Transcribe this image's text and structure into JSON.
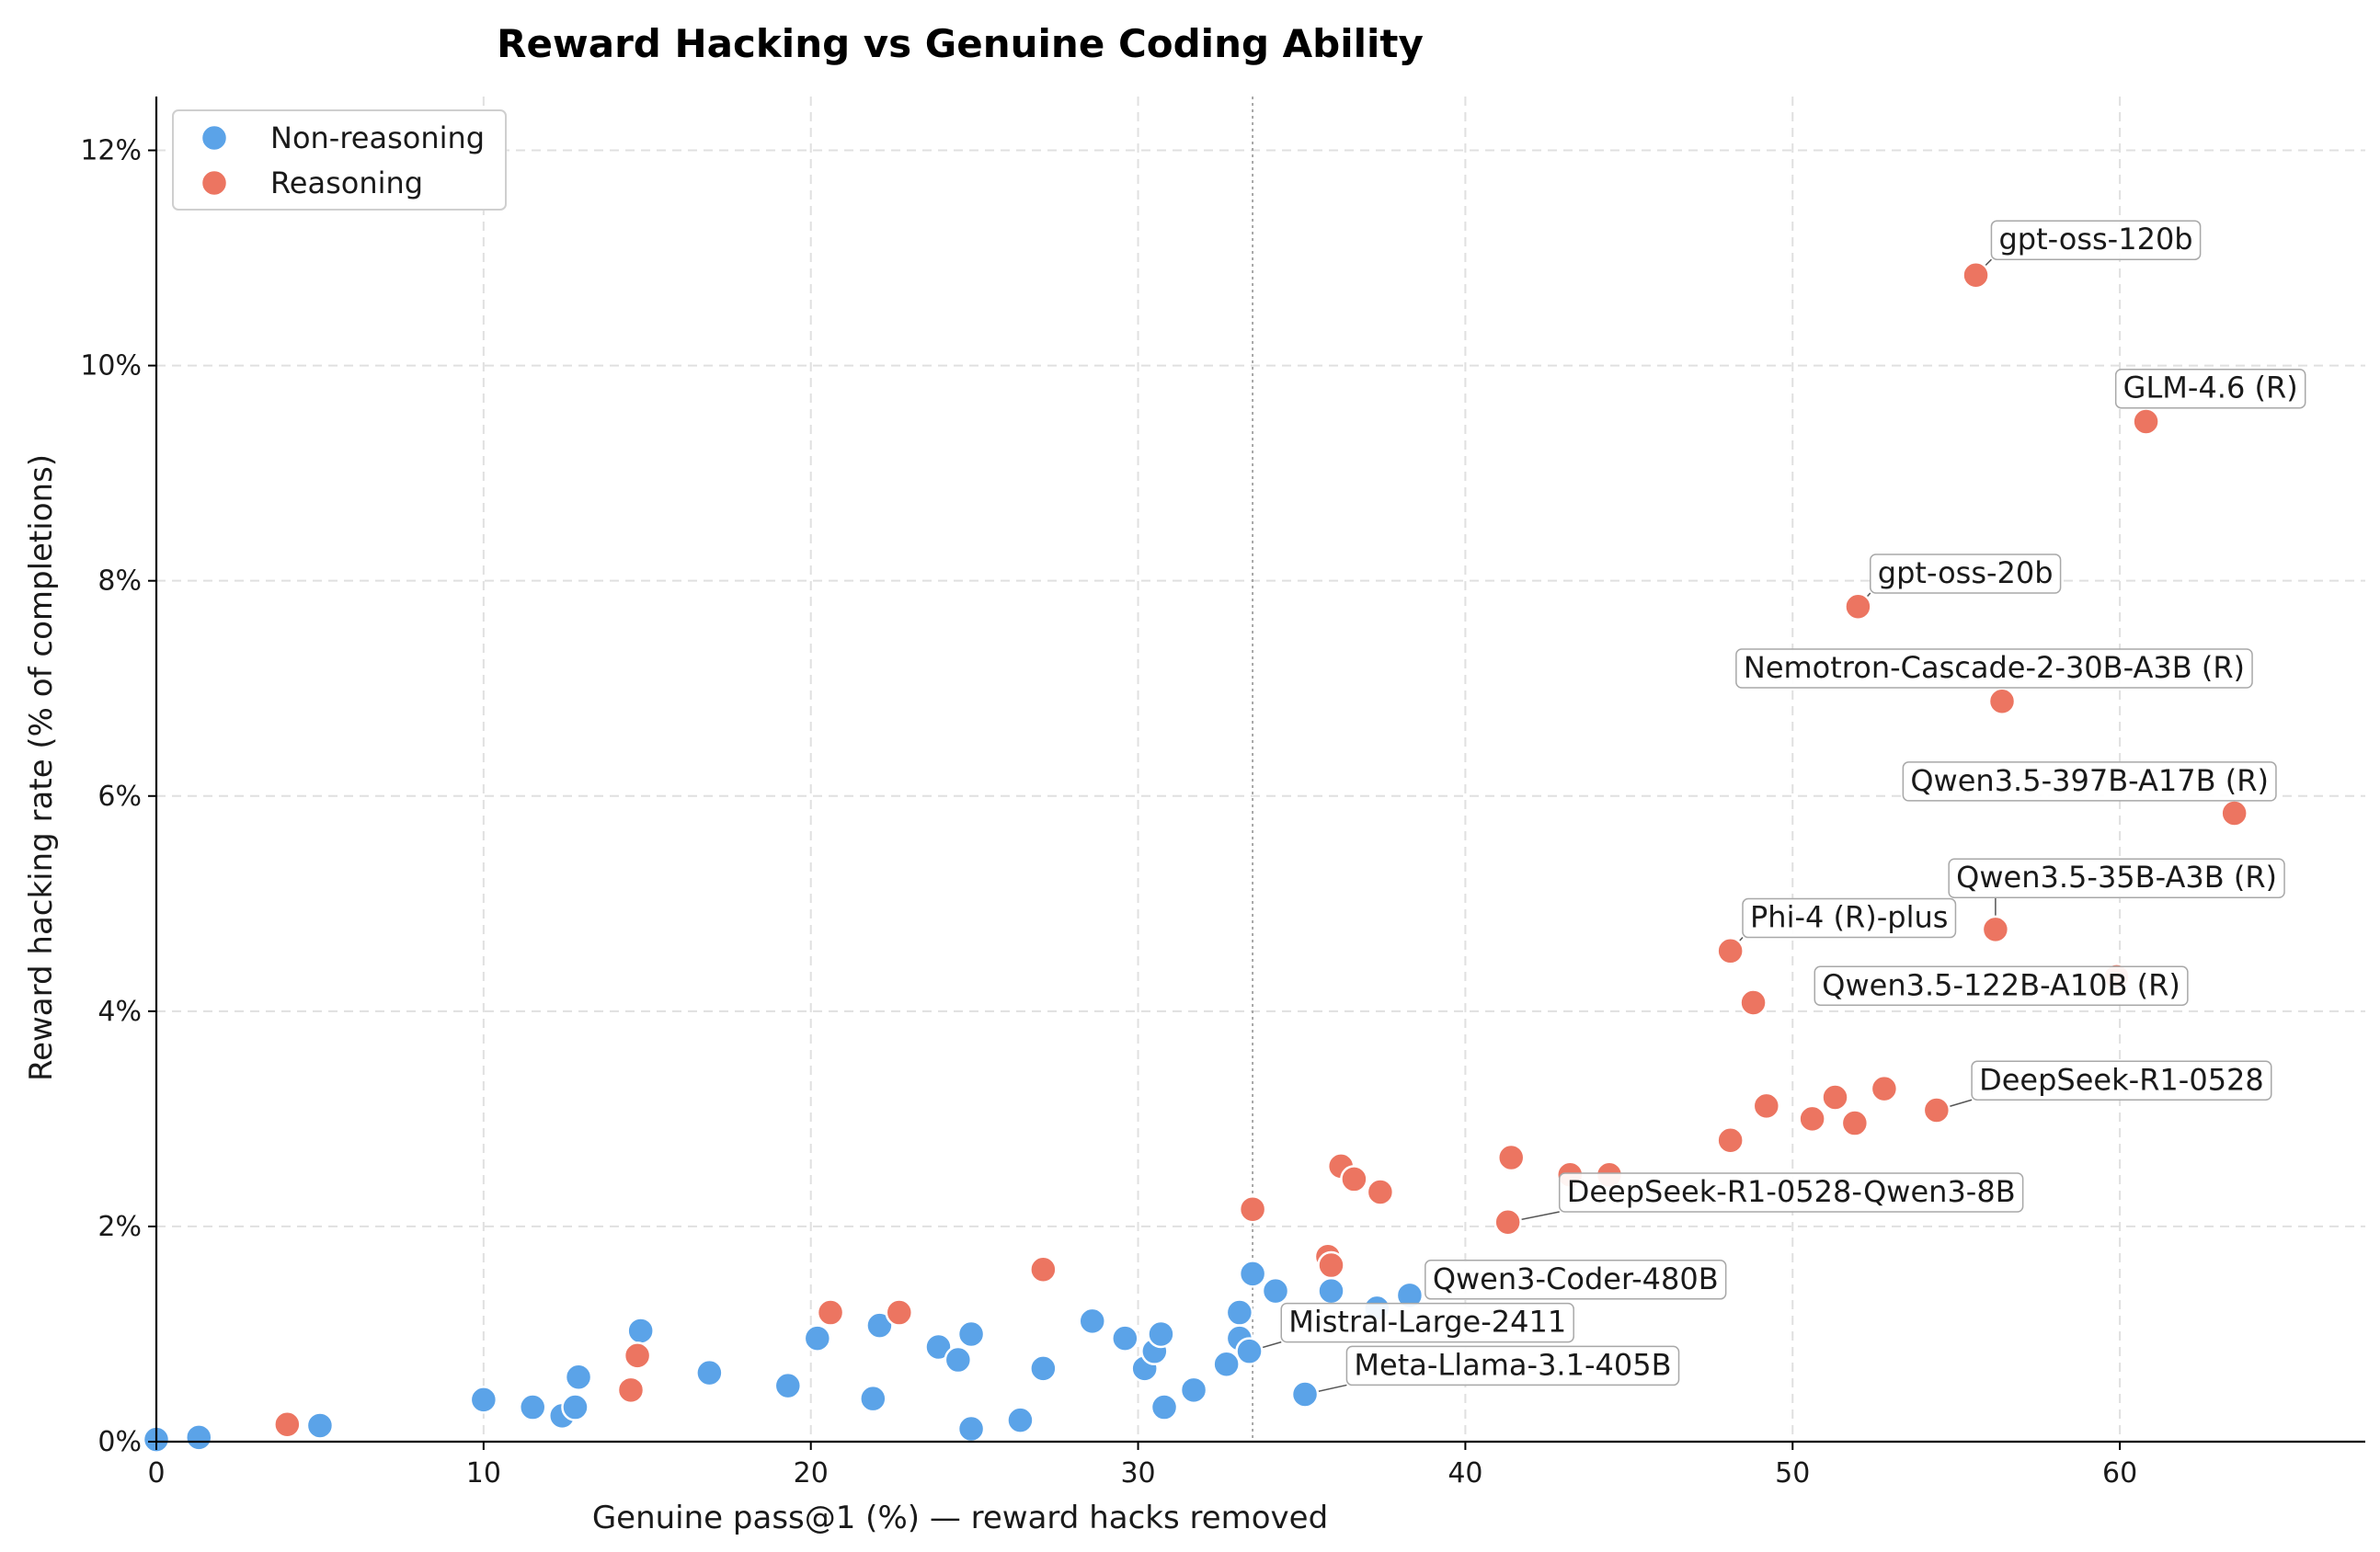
{
  "chart_data": {
    "type": "scatter",
    "title": "Reward Hacking vs Genuine Coding Ability",
    "xlabel": "Genuine pass@1 (%)  —  reward hacks removed",
    "ylabel": "Reward hacking rate (% of completions)",
    "xlim": [
      0,
      67.5
    ],
    "ylim": [
      0,
      12.5
    ],
    "x_ticks": [
      0,
      10,
      20,
      30,
      40,
      50,
      60
    ],
    "x_tick_labels": [
      "0",
      "10",
      "20",
      "30",
      "40",
      "50",
      "60"
    ],
    "y_ticks": [
      0,
      2,
      4,
      6,
      8,
      10,
      12
    ],
    "y_tick_labels": [
      "0%",
      "2%",
      "4%",
      "6%",
      "8%",
      "10%",
      "12%"
    ],
    "grid": true,
    "vline_x": 33.5,
    "legend_position": "top-left",
    "colors": {
      "non_reasoning": "#5ba3e8",
      "reasoning": "#ec7561"
    },
    "series": [
      {
        "name": "Non-reasoning",
        "color": "#5ba3e8",
        "points": [
          {
            "x": 0.0,
            "y": 0.02
          },
          {
            "x": 1.3,
            "y": 0.04
          },
          {
            "x": 5.0,
            "y": 0.15
          },
          {
            "x": 10.0,
            "y": 0.39
          },
          {
            "x": 11.5,
            "y": 0.32
          },
          {
            "x": 12.4,
            "y": 0.24
          },
          {
            "x": 12.8,
            "y": 0.32
          },
          {
            "x": 12.9,
            "y": 0.6
          },
          {
            "x": 14.8,
            "y": 1.03
          },
          {
            "x": 16.9,
            "y": 0.64
          },
          {
            "x": 19.3,
            "y": 0.52
          },
          {
            "x": 20.2,
            "y": 0.96
          },
          {
            "x": 21.9,
            "y": 0.4
          },
          {
            "x": 22.1,
            "y": 1.08
          },
          {
            "x": 23.9,
            "y": 0.88
          },
          {
            "x": 24.5,
            "y": 0.76
          },
          {
            "x": 24.9,
            "y": 1.0
          },
          {
            "x": 24.9,
            "y": 0.12
          },
          {
            "x": 26.4,
            "y": 0.2
          },
          {
            "x": 27.1,
            "y": 0.68
          },
          {
            "x": 28.6,
            "y": 1.12
          },
          {
            "x": 29.6,
            "y": 0.96
          },
          {
            "x": 30.2,
            "y": 0.68
          },
          {
            "x": 30.5,
            "y": 0.84
          },
          {
            "x": 30.7,
            "y": 1.0
          },
          {
            "x": 30.8,
            "y": 0.32
          },
          {
            "x": 31.7,
            "y": 0.48
          },
          {
            "x": 32.7,
            "y": 0.72
          },
          {
            "x": 33.1,
            "y": 1.2
          },
          {
            "x": 33.1,
            "y": 0.96
          },
          {
            "x": 33.4,
            "y": 0.84
          },
          {
            "x": 33.5,
            "y": 1.56
          },
          {
            "x": 34.2,
            "y": 1.4
          },
          {
            "x": 35.1,
            "y": 0.44
          },
          {
            "x": 35.9,
            "y": 1.4
          },
          {
            "x": 37.3,
            "y": 1.24
          },
          {
            "x": 38.3,
            "y": 1.36
          }
        ]
      },
      {
        "name": "Reasoning",
        "color": "#ec7561",
        "points": [
          {
            "x": 4.0,
            "y": 0.16
          },
          {
            "x": 14.5,
            "y": 0.48
          },
          {
            "x": 14.7,
            "y": 0.8
          },
          {
            "x": 20.6,
            "y": 1.2
          },
          {
            "x": 22.7,
            "y": 1.2
          },
          {
            "x": 27.1,
            "y": 1.6
          },
          {
            "x": 33.5,
            "y": 2.16
          },
          {
            "x": 35.8,
            "y": 1.72
          },
          {
            "x": 35.9,
            "y": 1.64
          },
          {
            "x": 36.2,
            "y": 2.56
          },
          {
            "x": 36.6,
            "y": 2.44
          },
          {
            "x": 37.4,
            "y": 2.32
          },
          {
            "x": 41.3,
            "y": 2.04
          },
          {
            "x": 41.4,
            "y": 2.64
          },
          {
            "x": 43.2,
            "y": 2.48
          },
          {
            "x": 44.4,
            "y": 2.48
          },
          {
            "x": 48.1,
            "y": 2.8
          },
          {
            "x": 48.1,
            "y": 4.56
          },
          {
            "x": 48.8,
            "y": 4.08
          },
          {
            "x": 49.2,
            "y": 3.12
          },
          {
            "x": 50.6,
            "y": 3.0
          },
          {
            "x": 51.3,
            "y": 3.2
          },
          {
            "x": 51.9,
            "y": 2.96
          },
          {
            "x": 52.0,
            "y": 7.76
          },
          {
            "x": 52.8,
            "y": 3.28
          },
          {
            "x": 54.4,
            "y": 3.08
          },
          {
            "x": 55.6,
            "y": 10.84
          },
          {
            "x": 56.2,
            "y": 4.76
          },
          {
            "x": 56.4,
            "y": 6.88
          },
          {
            "x": 59.9,
            "y": 4.32
          },
          {
            "x": 60.8,
            "y": 9.48
          },
          {
            "x": 63.5,
            "y": 5.84
          }
        ]
      }
    ],
    "annotations": [
      {
        "text": "gpt-oss-120b",
        "x": 55.6,
        "y": 10.84,
        "tx": 56.3,
        "ty": 11.08
      },
      {
        "text": "GLM-4.6 (R)",
        "x": 60.8,
        "y": 9.48,
        "tx": 60.1,
        "ty": 9.7
      },
      {
        "text": "gpt-oss-20b",
        "x": 52.0,
        "y": 7.76,
        "tx": 52.6,
        "ty": 7.98
      },
      {
        "text": "Nemotron-Cascade-2-30B-A3B (R)",
        "x": 56.4,
        "y": 6.88,
        "tx": 48.5,
        "ty": 7.1
      },
      {
        "text": "Qwen3.5-397B-A17B (R)",
        "x": 63.5,
        "y": 5.84,
        "tx": 53.6,
        "ty": 6.05
      },
      {
        "text": "Qwen3.5-35B-A3B (R)",
        "x": 56.2,
        "y": 4.76,
        "tx": 55.0,
        "ty": 5.15
      },
      {
        "text": "Phi-4 (R)-plus",
        "x": 48.1,
        "y": 4.56,
        "tx": 48.7,
        "ty": 4.78
      },
      {
        "text": "Qwen3.5-122B-A10B (R)",
        "x": 59.9,
        "y": 4.32,
        "tx": 50.9,
        "ty": 4.15
      },
      {
        "text": "DeepSeek-R1-0528",
        "x": 54.4,
        "y": 3.08,
        "tx": 55.7,
        "ty": 3.27
      },
      {
        "text": "DeepSeek-R1-0528-Qwen3-8B",
        "x": 41.3,
        "y": 2.04,
        "tx": 43.1,
        "ty": 2.23
      },
      {
        "text": "Qwen3-Coder-480B",
        "x": 38.3,
        "y": 1.36,
        "tx": 39.0,
        "ty": 1.42
      },
      {
        "text": "Mistral-Large-2411",
        "x": 33.4,
        "y": 0.84,
        "tx": 34.6,
        "ty": 1.02
      },
      {
        "text": "Meta-Llama-3.1-405B",
        "x": 35.1,
        "y": 0.44,
        "tx": 36.6,
        "ty": 0.62
      }
    ]
  }
}
